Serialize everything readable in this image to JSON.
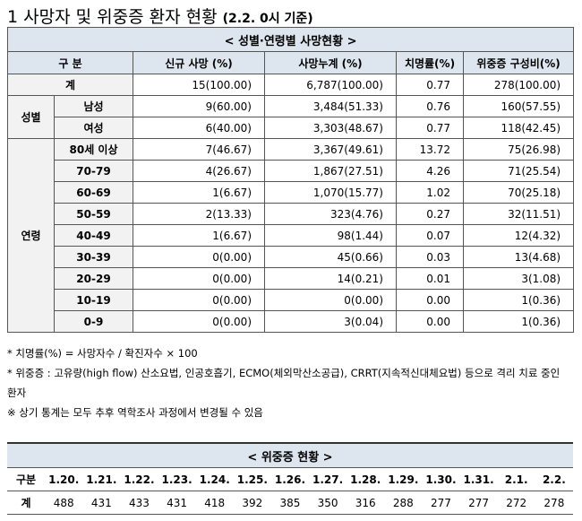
{
  "header": {
    "title": "1 사망자 및 위중증 환자 현황",
    "basis": "(2.2. 0시 기준)"
  },
  "death_table": {
    "caption": "< 성별·연령별 사망현황 >",
    "columns": [
      "구 분",
      "신규 사망 (%)",
      "사망누계 (%)",
      "치명률(%)",
      "위중증 구성비(%)"
    ],
    "total": {
      "label": "계",
      "cells": [
        "15(100.00)",
        "6,787(100.00)",
        "0.77",
        "278(100.00)"
      ]
    },
    "groups": [
      {
        "label": "성별",
        "rows": [
          {
            "label": "남성",
            "cells": [
              "9(60.00)",
              "3,484(51.33)",
              "0.76",
              "160(57.55)"
            ]
          },
          {
            "label": "여성",
            "cells": [
              "6(40.00)",
              "3,303(48.67)",
              "0.77",
              "118(42.45)"
            ]
          }
        ]
      },
      {
        "label": "연령",
        "rows": [
          {
            "label": "80세 이상",
            "cells": [
              "7(46.67)",
              "3,367(49.61)",
              "13.72",
              "75(26.98)"
            ]
          },
          {
            "label": "70-79",
            "cells": [
              "4(26.67)",
              "1,867(27.51)",
              "4.26",
              "71(25.54)"
            ]
          },
          {
            "label": "60-69",
            "cells": [
              "1(6.67)",
              "1,070(15.77)",
              "1.02",
              "70(25.18)"
            ]
          },
          {
            "label": "50-59",
            "cells": [
              "2(13.33)",
              "323(4.76)",
              "0.27",
              "32(11.51)"
            ]
          },
          {
            "label": "40-49",
            "cells": [
              "1(6.67)",
              "98(1.44)",
              "0.07",
              "12(4.32)"
            ]
          },
          {
            "label": "30-39",
            "cells": [
              "0(0.00)",
              "45(0.66)",
              "0.03",
              "13(4.68)"
            ]
          },
          {
            "label": "20-29",
            "cells": [
              "0(0.00)",
              "14(0.21)",
              "0.01",
              "3(1.08)"
            ]
          },
          {
            "label": "10-19",
            "cells": [
              "0(0.00)",
              "0(0.00)",
              "0.00",
              "1(0.36)"
            ]
          },
          {
            "label": "0-9",
            "cells": [
              "0(0.00)",
              "3(0.04)",
              "0.00",
              "1(0.36)"
            ]
          }
        ]
      }
    ]
  },
  "notes": [
    "* 치명률(%) = 사망자수 / 확진자수 × 100",
    "* 위중증 : 고유량(high flow) 산소요법, 인공호흡기, ECMO(체외막산소공급), CRRT(지속적신대체요법) 등으로 격리 치료 중인 환자",
    "※ 상기 통계는 모두 추후 역학조사 과정에서 변경될 수 있음"
  ],
  "severe_table": {
    "caption": "< 위중증 현황 >",
    "header_label": "구분",
    "dates": [
      "1.20.",
      "1.21.",
      "1.22.",
      "1.23.",
      "1.24.",
      "1.25.",
      "1.26.",
      "1.27.",
      "1.28.",
      "1.29.",
      "1.30.",
      "1.31.",
      "2.1.",
      "2.2."
    ],
    "row_label": "계",
    "values": [
      "488",
      "431",
      "433",
      "431",
      "418",
      "392",
      "385",
      "350",
      "316",
      "288",
      "277",
      "277",
      "272",
      "278"
    ]
  }
}
